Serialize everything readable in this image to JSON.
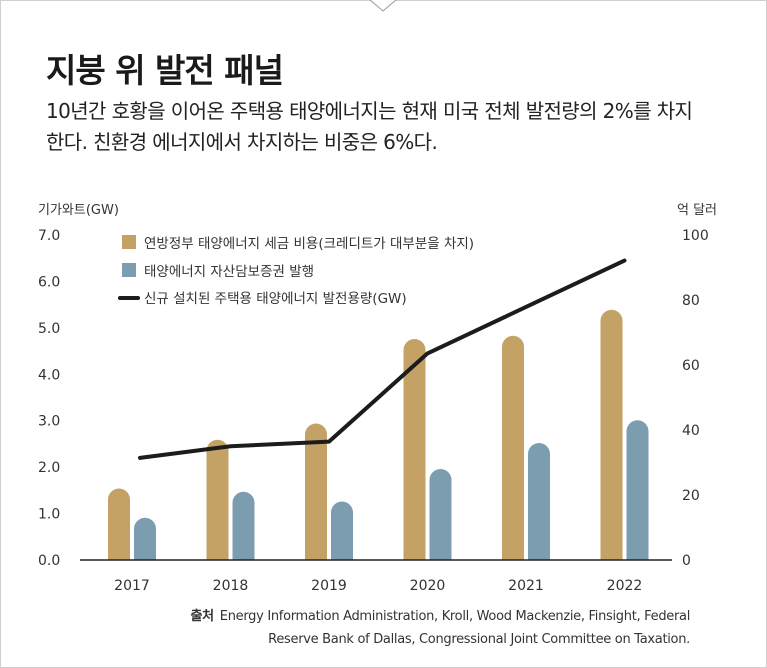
{
  "header": {
    "title": "지붕 위 발전 패널",
    "subtitle": "10년간 호황을 이어온 주택용 태양에너지는 현재 미국 전체 발전량의 2%를 차지한다. 친환경 에너지에서 차지하는 비중은 6%다."
  },
  "source": {
    "label": "출처",
    "text": "Energy Information Administration, Kroll, Wood Mackenzie, Finsight, Federal Reserve Bank of Dallas, Congressional Joint Committee on Taxation."
  },
  "colors": {
    "tax_credit": "#c4a266",
    "abs": "#7c9db0",
    "capacity": "#1c1c1c",
    "axis": "#222222",
    "text": "#333333"
  },
  "chart_data": {
    "type": "bar",
    "categories": [
      "2017",
      "2018",
      "2019",
      "2020",
      "2021",
      "2022"
    ],
    "left_axis": {
      "title": "기가와트(GW)",
      "range": [
        0,
        7
      ],
      "ticks": [
        "0.0",
        "1.0",
        "2.0",
        "3.0",
        "4.0",
        "5.0",
        "6.0",
        "7.0"
      ]
    },
    "right_axis": {
      "title": "억 달러",
      "range": [
        0,
        100
      ],
      "ticks": [
        "0",
        "20",
        "40",
        "60",
        "80",
        "100"
      ]
    },
    "series": [
      {
        "name": "연방정부 태양에너지 세금 비용(크레디트가 대부분을 차지)",
        "type": "bar",
        "axis": "right",
        "values": [
          22,
          37,
          42,
          68,
          69,
          77
        ]
      },
      {
        "name": "태양에너지 자산담보증권 발행",
        "type": "bar",
        "axis": "right",
        "values": [
          13,
          21,
          18,
          28,
          36,
          43
        ]
      },
      {
        "name": "신규 설치된 주택용 태양에너지 발전용량(GW)",
        "type": "line",
        "axis": "left",
        "values": [
          2.2,
          2.45,
          2.55,
          4.45,
          5.45,
          6.45
        ]
      }
    ],
    "grid": false,
    "legend_position": "top-left"
  }
}
